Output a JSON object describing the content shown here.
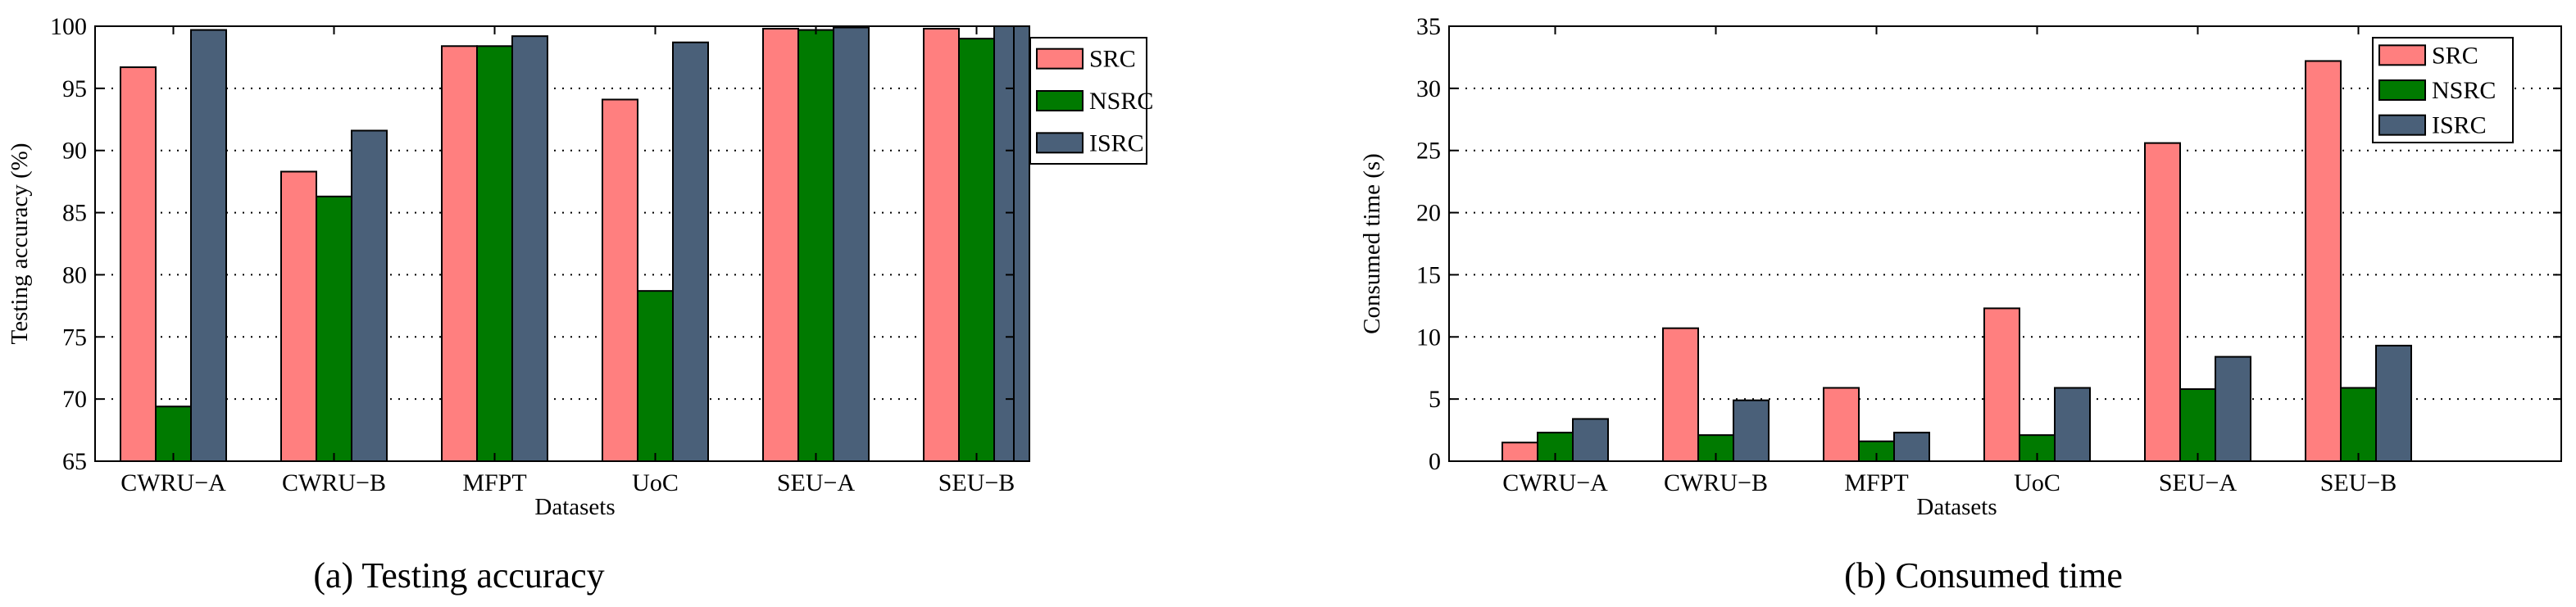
{
  "chart_data": [
    {
      "type": "bar",
      "title": "",
      "caption": "(a) Testing accuracy",
      "xlabel": "Datasets",
      "ylabel": "Testing accuracy (%)",
      "ylim": [
        65,
        100
      ],
      "yticks": [
        65,
        70,
        75,
        80,
        85,
        90,
        95,
        100
      ],
      "categories": [
        "CWRU−A",
        "CWRU−B",
        "MFPT",
        "UoC",
        "SEU−A",
        "SEU−B"
      ],
      "series": [
        {
          "name": "SRC",
          "values": [
            96.7,
            88.3,
            98.4,
            94.1,
            99.8,
            99.8
          ]
        },
        {
          "name": "NSRC",
          "values": [
            69.4,
            86.3,
            98.4,
            78.7,
            99.7,
            99.0
          ]
        },
        {
          "name": "ISRC",
          "values": [
            99.7,
            91.6,
            99.2,
            98.7,
            99.9,
            100.0
          ]
        }
      ],
      "legend": {
        "position": "top-right",
        "entries": [
          "SRC",
          "NSRC",
          "ISRC"
        ]
      },
      "grid": "horizontal-dotted"
    },
    {
      "type": "bar",
      "title": "",
      "caption": "(b) Consumed time",
      "xlabel": "Datasets",
      "ylabel": "Consumed time (s)",
      "ylim": [
        0,
        35
      ],
      "yticks": [
        0,
        5,
        10,
        15,
        20,
        25,
        30,
        35
      ],
      "categories": [
        "CWRU−A",
        "CWRU−B",
        "MFPT",
        "UoC",
        "SEU−A",
        "SEU−B"
      ],
      "series": [
        {
          "name": "SRC",
          "values": [
            1.5,
            10.7,
            5.9,
            12.3,
            25.6,
            32.2
          ]
        },
        {
          "name": "NSRC",
          "values": [
            2.3,
            2.1,
            1.6,
            2.1,
            5.8,
            5.9
          ]
        },
        {
          "name": "ISRC",
          "values": [
            3.4,
            4.9,
            2.3,
            5.9,
            8.4,
            9.3
          ]
        }
      ],
      "legend": {
        "position": "top-right",
        "entries": [
          "SRC",
          "NSRC",
          "ISRC"
        ]
      },
      "grid": "horizontal-dotted"
    }
  ],
  "colors": {
    "SRC": "#ff7f7f",
    "NSRC": "#007a00",
    "ISRC": "#4a6079"
  }
}
